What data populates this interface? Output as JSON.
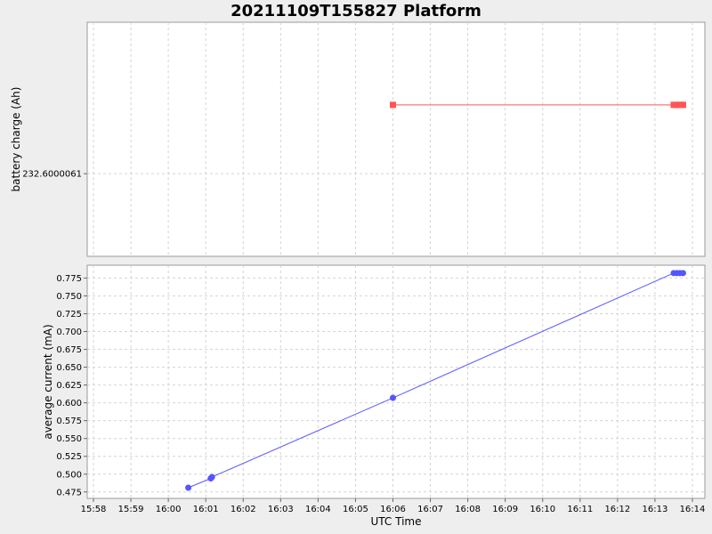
{
  "title": "20211109T155827 Platform",
  "colors": {
    "background": "#eeeeee",
    "plot": "#ffffff",
    "charge_series": "#ff5555",
    "current_series": "#5555ff"
  },
  "chart_data": [
    {
      "type": "line",
      "marker": "square",
      "xlabel": "",
      "ylabel": "battery charge (Ah)",
      "xlim": [
        "15:57:50",
        "16:14:20"
      ],
      "yticks": [
        "232.6000061"
      ],
      "grid": true,
      "x": [
        "16:06:00",
        "16:13:30",
        "16:13:35",
        "16:13:40",
        "16:13:45"
      ],
      "y": [
        232.6000066,
        232.6000066,
        232.6000066,
        232.6000066,
        232.6000066
      ]
    },
    {
      "type": "line",
      "marker": "circle",
      "xlabel": "UTC Time",
      "ylabel": "average current (mA)",
      "xlim": [
        "15:57:50",
        "16:14:20"
      ],
      "ylim": [
        0.466,
        0.793
      ],
      "yticks": [
        "0.475",
        "0.500",
        "0.525",
        "0.550",
        "0.575",
        "0.600",
        "0.625",
        "0.650",
        "0.675",
        "0.700",
        "0.725",
        "0.750",
        "0.775"
      ],
      "xticks": [
        "15:58",
        "15:59",
        "16:00",
        "16:01",
        "16:02",
        "16:03",
        "16:04",
        "16:05",
        "16:06",
        "16:07",
        "16:08",
        "16:09",
        "16:10",
        "16:11",
        "16:12",
        "16:13",
        "16:14"
      ],
      "grid": true,
      "x": [
        "16:00:32",
        "16:01:08",
        "16:01:10",
        "16:06:00",
        "16:13:30",
        "16:13:35",
        "16:13:40",
        "16:13:45"
      ],
      "y": [
        0.481,
        0.494,
        0.496,
        0.607,
        0.782,
        0.782,
        0.782,
        0.782
      ]
    }
  ]
}
